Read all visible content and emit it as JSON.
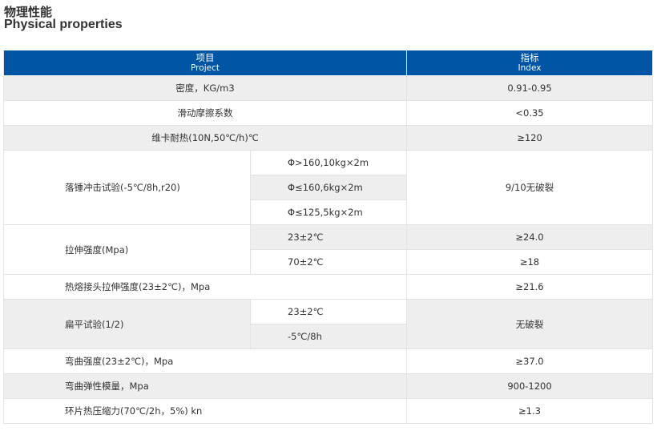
{
  "title_cn": "物理性能",
  "title_en": "Physical properties",
  "header": {
    "project_cn": "项目",
    "project_en": "Project",
    "index_cn": "指标",
    "index_en": "Index"
  },
  "rows": [
    {
      "item": "密度，KG/m3",
      "index": "0.91-0.95"
    },
    {
      "item": "滑动摩擦系数",
      "index": "<0.35"
    },
    {
      "item": "维卡耐热(10N,50℃/h)℃",
      "index": "≥120"
    },
    {
      "item": "落锤冲击试验(-5℃/8h,r20)",
      "subs": [
        "Φ>160,10kg×2m",
        "Φ≤160,6kg×2m",
        "Φ≤125,5kg×2m"
      ],
      "index": "9/10无破裂"
    },
    {
      "item": "拉伸强度(Mpa)",
      "subs": [
        "23±2℃",
        "70±2℃"
      ],
      "indexes": [
        "≥24.0",
        "≥18"
      ]
    },
    {
      "item": "热熔接头拉伸强度(23±2℃)，Mpa",
      "index": "≥21.6"
    },
    {
      "item": "扁平试验(1/2)",
      "subs": [
        "23±2℃",
        "-5℃/8h"
      ],
      "index": "无破裂"
    },
    {
      "item": "弯曲强度(23±2℃)，Mpa",
      "index": "≥37.0"
    },
    {
      "item": "弯曲弹性模量，Mpa",
      "index": "900-1200"
    },
    {
      "item": "环片热压缩力(70℃/2h，5%) kn",
      "index": "≥1.3"
    }
  ]
}
